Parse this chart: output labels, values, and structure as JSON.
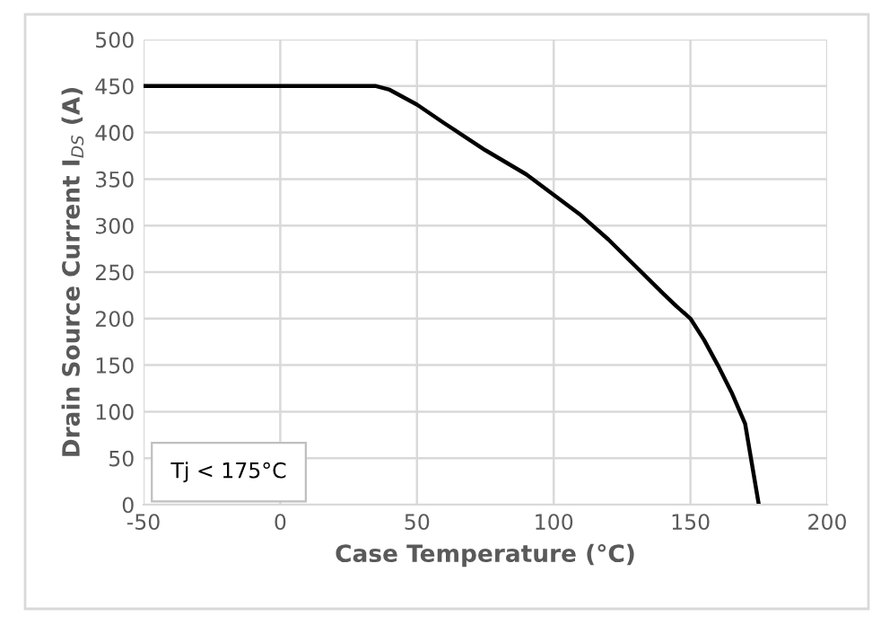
{
  "chart_data": {
    "type": "line",
    "xlabel": "Case Temperature (°C)",
    "ylabel": "Drain Source Current I$_{DS}$ (A)",
    "x": [
      -50,
      35,
      40,
      50,
      60,
      75,
      90,
      100,
      110,
      120,
      130,
      140,
      145,
      150,
      155,
      160,
      165,
      170,
      175
    ],
    "series": [
      {
        "color": "#000000",
        "values": [
          450,
          450,
          446,
          430,
          410,
          381,
          355,
          333,
          311,
          285,
          256,
          227,
          213,
          200,
          177,
          150,
          121,
          87,
          0
        ]
      }
    ],
    "xlim": [
      -50,
      200
    ],
    "xticks": [
      -50,
      0,
      50,
      100,
      150,
      200
    ],
    "ylim": [
      0,
      500
    ],
    "yticks": [
      0,
      50,
      100,
      150,
      200,
      250,
      300,
      350,
      400,
      450,
      500
    ],
    "grid": true,
    "marker": "none",
    "line_style": "solid",
    "annotations": [
      "Tj < 175°C"
    ]
  }
}
